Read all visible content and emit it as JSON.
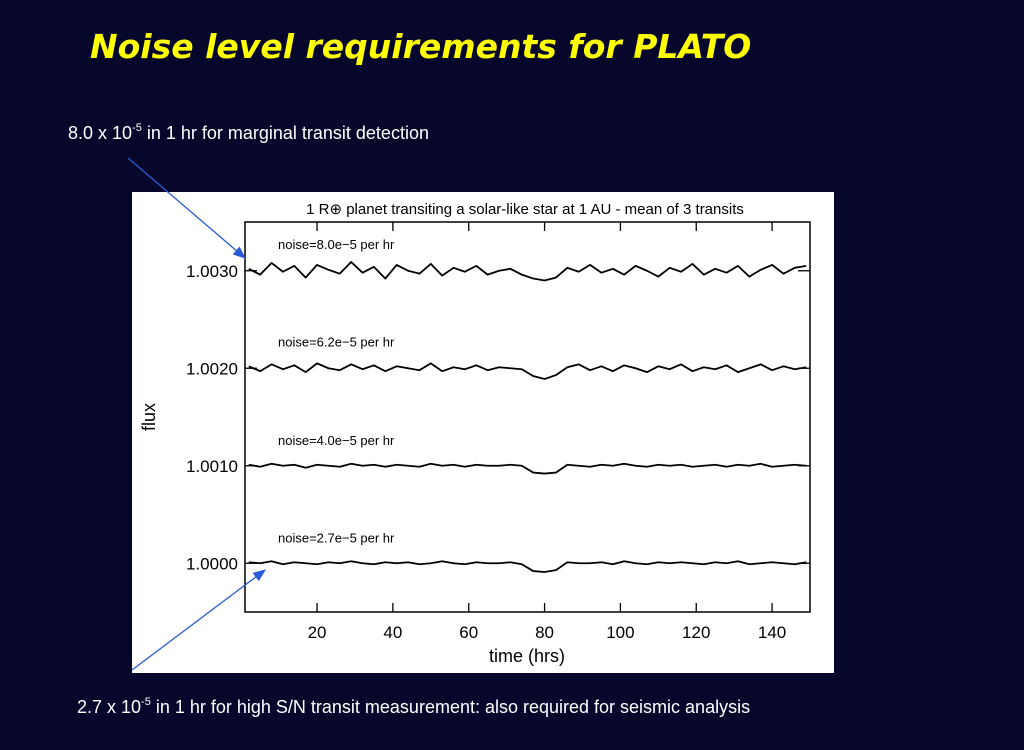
{
  "slide_title": "Noise level requirements for PLATO",
  "annotation_top": {
    "base": "8.0 x 10",
    "exponent": "-5",
    "text": "in 1 hr for marginal transit detection"
  },
  "annotation_bottom": {
    "base": "2.7 x 10",
    "exponent": "-5",
    "text": "in 1 hr for high S/N transit measurement: also required for seismic analysis"
  },
  "chart_data": {
    "type": "line",
    "title": "1 R⊕ planet transiting a solar-like star at 1 AU - mean of 3 transits",
    "x_label": "time (hrs)",
    "y_label": "flux",
    "xlim": [
      1,
      150
    ],
    "ylim": [
      0.9995,
      1.0035
    ],
    "xticks": [
      20,
      40,
      60,
      80,
      100,
      120,
      140
    ],
    "yticks": [
      {
        "value": 1.0,
        "label": "1.0000"
      },
      {
        "value": 1.001,
        "label": "1.0010"
      },
      {
        "value": 1.002,
        "label": "1.0020"
      },
      {
        "value": 1.003,
        "label": "1.0030"
      }
    ],
    "x": [
      2,
      5,
      8,
      11,
      14,
      17,
      20,
      23,
      26,
      29,
      32,
      35,
      38,
      41,
      44,
      47,
      50,
      53,
      56,
      59,
      62,
      65,
      68,
      71,
      74,
      77,
      80,
      83,
      86,
      89,
      92,
      95,
      98,
      101,
      104,
      107,
      110,
      113,
      116,
      119,
      122,
      125,
      128,
      131,
      134,
      137,
      140,
      143,
      146,
      149
    ],
    "series": [
      {
        "name": "noise=8.0e−5 per hr",
        "color": "#000000",
        "values": [
          1.00302,
          1.00296,
          1.00308,
          1.00299,
          1.00305,
          1.00293,
          1.00306,
          1.00301,
          1.00297,
          1.00309,
          1.00298,
          1.00304,
          1.00292,
          1.00306,
          1.003,
          1.00297,
          1.00307,
          1.00295,
          1.00303,
          1.00299,
          1.00305,
          1.00296,
          1.003,
          1.00302,
          1.00296,
          1.00292,
          1.0029,
          1.00293,
          1.00303,
          1.00299,
          1.00306,
          1.00298,
          1.00302,
          1.00296,
          1.00305,
          1.003,
          1.00294,
          1.00303,
          1.00299,
          1.00307,
          1.00296,
          1.00302,
          1.00298,
          1.00305,
          1.00294,
          1.00301,
          1.00306,
          1.00297,
          1.00303,
          1.00305
        ]
      },
      {
        "name": "noise=6.2e−5 per hr",
        "color": "#000000",
        "values": [
          1.00202,
          1.00197,
          1.00204,
          1.00199,
          1.00203,
          1.00196,
          1.00205,
          1.002,
          1.00198,
          1.00204,
          1.00199,
          1.00203,
          1.00197,
          1.00202,
          1.002,
          1.00198,
          1.00205,
          1.00197,
          1.00201,
          1.00199,
          1.00203,
          1.00198,
          1.00201,
          1.002,
          1.00199,
          1.00192,
          1.00189,
          1.00193,
          1.00201,
          1.00204,
          1.00198,
          1.00202,
          1.00197,
          1.00203,
          1.002,
          1.00196,
          1.00202,
          1.00199,
          1.00204,
          1.00197,
          1.00201,
          1.00199,
          1.00203,
          1.00196,
          1.002,
          1.00204,
          1.00198,
          1.00202,
          1.00199,
          1.00201
        ]
      },
      {
        "name": "noise=4.0e−5 per hr",
        "color": "#000000",
        "values": [
          1.00101,
          1.00099,
          1.00102,
          1.001,
          1.00101,
          1.00098,
          1.00101,
          1.001,
          1.00099,
          1.00102,
          1.001,
          1.00101,
          1.00099,
          1.00101,
          1.001,
          1.00099,
          1.00102,
          1.001,
          1.00101,
          1.00099,
          1.00101,
          1.001,
          1.001,
          1.00101,
          1.001,
          1.00093,
          1.00092,
          1.00093,
          1.00101,
          1.001,
          1.00099,
          1.00101,
          1.001,
          1.00102,
          1.001,
          1.00099,
          1.00101,
          1.001,
          1.00101,
          1.00099,
          1.001,
          1.00101,
          1.00099,
          1.00101,
          1.001,
          1.00102,
          1.00099,
          1.001,
          1.00101,
          1.001
        ]
      },
      {
        "name": "noise=2.7e−5 per hr",
        "color": "#000000",
        "values": [
          1.00001,
          1.0,
          1.00002,
          0.99999,
          1.00001,
          1.0,
          0.99999,
          1.00001,
          1.0,
          1.00002,
          1.0,
          0.99999,
          1.00001,
          1.0,
          1.00001,
          0.99999,
          1.0,
          1.00002,
          1.0,
          0.99999,
          1.00001,
          1.0,
          1.0,
          1.00001,
          0.99999,
          0.99992,
          0.99991,
          0.99993,
          1.00001,
          1.0,
          1.0,
          1.00001,
          0.99999,
          1.00002,
          1.0,
          0.99999,
          1.00001,
          1.0,
          1.00001,
          1.0,
          0.99999,
          1.00001,
          1.0,
          1.00002,
          0.99999,
          1.0,
          1.00001,
          1.0,
          0.99999,
          1.00001
        ]
      }
    ]
  }
}
